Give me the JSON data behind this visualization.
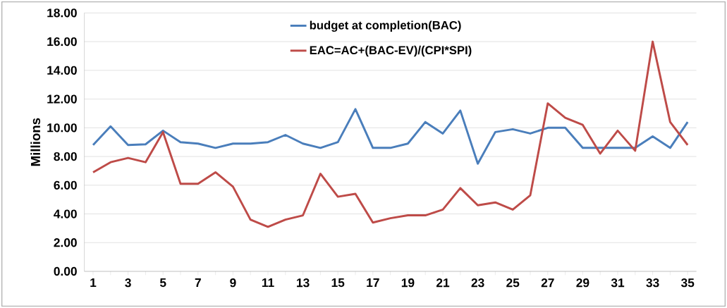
{
  "chart_data": {
    "type": "line",
    "ylabel": "Millions",
    "categories": [
      "1",
      null,
      "3",
      null,
      "5",
      null,
      "7",
      null,
      "9",
      null,
      "11",
      null,
      "13",
      null,
      "15",
      null,
      "17",
      null,
      "19",
      null,
      "21",
      null,
      "23",
      null,
      "25",
      null,
      "27",
      null,
      "29",
      null,
      "31",
      null,
      "33",
      null,
      "35"
    ],
    "series": [
      {
        "name": "budget at completion(BAC)",
        "color": "#4a7ebb",
        "values": [
          8.8,
          10.1,
          8.8,
          8.85,
          9.8,
          9.0,
          8.9,
          8.6,
          8.9,
          8.9,
          9.0,
          9.5,
          8.9,
          8.6,
          9.0,
          11.3,
          8.6,
          8.6,
          8.9,
          10.4,
          9.6,
          11.2,
          7.5,
          9.7,
          9.9,
          9.6,
          10.0,
          10.0,
          8.6,
          8.6,
          8.6,
          8.6,
          9.4,
          8.6,
          10.4
        ]
      },
      {
        "name": "EAC=AC+(BAC-EV)/(CPI*SPI)",
        "color": "#be4b48",
        "values": [
          6.9,
          7.6,
          7.9,
          7.6,
          9.7,
          6.1,
          6.1,
          6.9,
          5.9,
          3.6,
          3.1,
          3.6,
          3.9,
          6.8,
          5.2,
          5.4,
          3.4,
          3.7,
          3.9,
          3.9,
          4.3,
          5.8,
          4.6,
          4.8,
          4.3,
          5.3,
          11.7,
          10.7,
          10.2,
          8.2,
          9.8,
          8.4,
          16.0,
          10.4,
          8.8
        ]
      }
    ],
    "ylim": [
      0,
      18
    ],
    "yticks": [
      {
        "value": 0,
        "label": "0.00"
      },
      {
        "value": 2,
        "label": "2.00"
      },
      {
        "value": 4,
        "label": "4.00"
      },
      {
        "value": 6,
        "label": "6.00"
      },
      {
        "value": 8,
        "label": "8.00"
      },
      {
        "value": 10,
        "label": "10.00"
      },
      {
        "value": 12,
        "label": "12.00"
      },
      {
        "value": 14,
        "label": "14.00"
      },
      {
        "value": 16,
        "label": "16.00"
      },
      {
        "value": 18,
        "label": "18.00"
      }
    ],
    "grid": "y",
    "legend": "top",
    "marker": "none",
    "line_style": "solid"
  }
}
